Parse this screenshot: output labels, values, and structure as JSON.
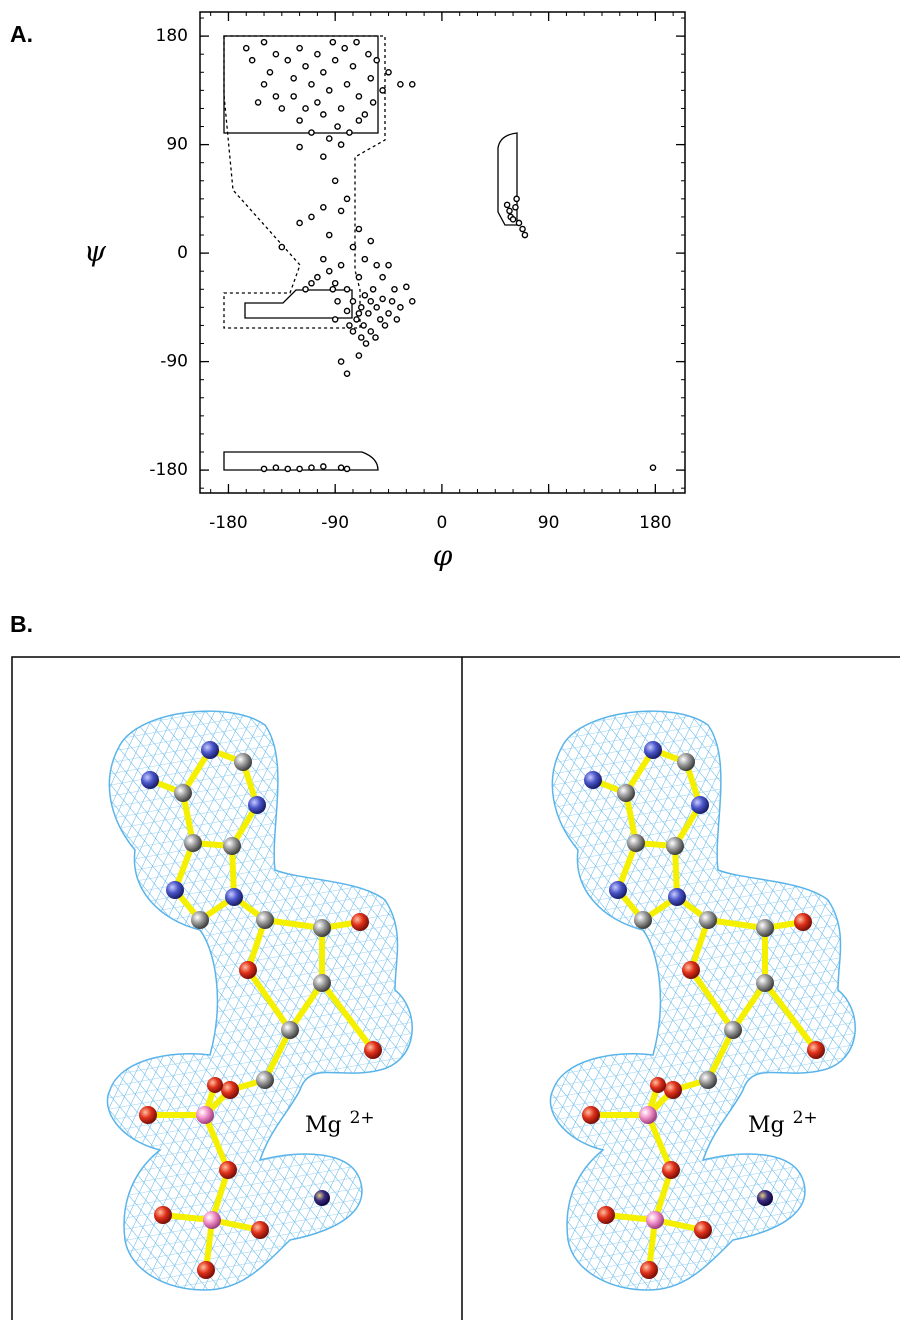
{
  "chart_data": {
    "type": "scatter",
    "x_label": "φ",
    "y_label": "ψ",
    "xlim": [
      -204,
      205
    ],
    "ylim": [
      -199,
      200
    ],
    "xticks": [
      -180,
      -90,
      0,
      90,
      180
    ],
    "yticks": [
      -180,
      -90,
      0,
      90,
      180
    ],
    "color": "#000000",
    "x": [
      -165,
      -160,
      -150,
      -140,
      -145,
      -130,
      -125,
      -120,
      -115,
      -110,
      -105,
      -100,
      -95,
      -90,
      -85,
      -80,
      -75,
      -70,
      -65,
      -60,
      -55,
      -140,
      -135,
      -120,
      -110,
      -100,
      -95,
      -88,
      -78,
      -70,
      -150,
      -125,
      -115,
      -105,
      -92,
      -82,
      -72,
      -62,
      -58,
      -50,
      -45,
      -35,
      -25,
      -155,
      -120,
      -100,
      -85,
      -90,
      -80,
      -85,
      -100,
      -120,
      -110,
      -135,
      -95,
      -70,
      -60,
      -75,
      -100,
      -95,
      -90,
      -85,
      -80,
      -75,
      -70,
      -68,
      -65,
      -62,
      -60,
      -58,
      -55,
      -52,
      -50,
      -48,
      -45,
      -42,
      -40,
      -38,
      -35,
      -30,
      -25,
      -72,
      -66,
      -60,
      -56,
      -70,
      -80,
      -88,
      -92,
      -105,
      -110,
      -78,
      -64,
      -68,
      -75,
      -85,
      -80,
      -70,
      -90,
      -115,
      -50,
      -55,
      -65,
      -45,
      55,
      57,
      58,
      60,
      62,
      65,
      68,
      70,
      63,
      -150,
      -140,
      -130,
      -120,
      -110,
      -85,
      -80,
      -100,
      178
    ],
    "values": [
      170,
      160,
      175,
      165,
      150,
      160,
      145,
      170,
      155,
      140,
      125,
      150,
      135,
      160,
      120,
      140,
      155,
      130,
      115,
      145,
      160,
      130,
      120,
      110,
      100,
      115,
      95,
      105,
      100,
      110,
      140,
      130,
      120,
      165,
      175,
      170,
      175,
      165,
      125,
      135,
      150,
      140,
      140,
      125,
      88,
      80,
      90,
      60,
      45,
      35,
      38,
      25,
      30,
      5,
      15,
      20,
      10,
      5,
      -5,
      -15,
      -25,
      -10,
      -30,
      -40,
      -20,
      -45,
      -35,
      -50,
      -40,
      -30,
      -45,
      -55,
      -38,
      -60,
      -50,
      -40,
      -30,
      -55,
      -45,
      -28,
      -40,
      -55,
      -60,
      -65,
      -70,
      -50,
      -48,
      -40,
      -30,
      -20,
      -25,
      -60,
      -75,
      -70,
      -65,
      -90,
      -100,
      -85,
      -55,
      -30,
      -20,
      -10,
      -5,
      -10,
      40,
      35,
      30,
      28,
      38,
      25,
      20,
      15,
      45,
      -179,
      -178,
      -179,
      -179,
      -178,
      -178,
      -179,
      -177,
      -178
    ]
  },
  "panel_labels": [
    "A.",
    "B."
  ],
  "stereo_image": {
    "ion_label": "Mg",
    "ion_charge": "2+"
  }
}
